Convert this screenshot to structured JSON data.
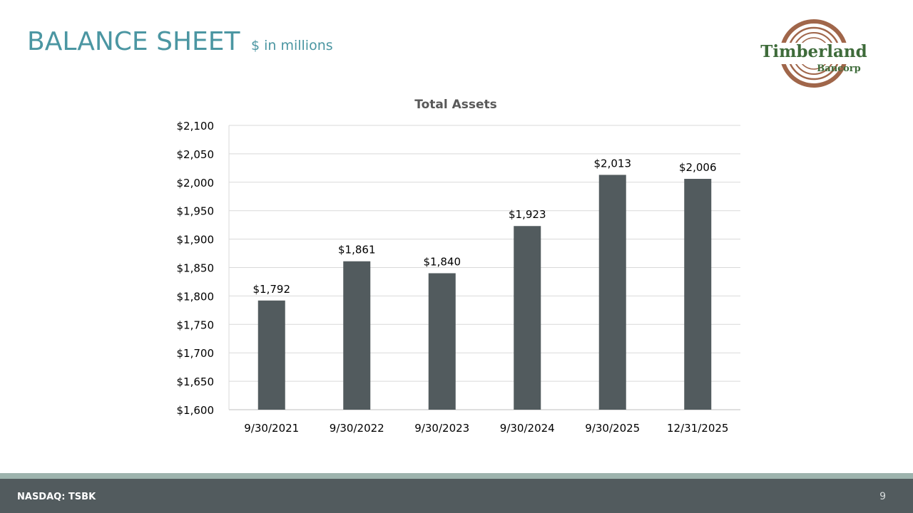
{
  "slide": {
    "title": "BALANCE SHEET",
    "subtitle": "$ in millions",
    "page_number": "9",
    "footer_ticker": "NASDAQ: TSBK"
  },
  "logo": {
    "name": "Timberland",
    "sub": "Bancorp",
    "colors": {
      "ring": "#a0664a",
      "text": "#3e6b3a"
    }
  },
  "colors": {
    "title": "#4b96a2",
    "bar": "#525b5e",
    "grid": "#d9d9d9",
    "footer_bar": "#525b5e",
    "footer_band": "#9db3ad"
  },
  "chart_data": {
    "type": "bar",
    "title": "Total Assets",
    "categories": [
      "9/30/2021",
      "9/30/2022",
      "9/30/2023",
      "9/30/2024",
      "9/30/2025",
      "12/31/2025"
    ],
    "values": [
      1792,
      1861,
      1840,
      1923,
      2013,
      2006
    ],
    "value_labels": [
      "$1,792",
      "$1,861",
      "$1,840",
      "$1,923",
      "$2,013",
      "$2,006"
    ],
    "ylim": [
      1600,
      2100
    ],
    "yticks": [
      1600,
      1650,
      1700,
      1750,
      1800,
      1850,
      1900,
      1950,
      2000,
      2050,
      2100
    ],
    "ytick_labels": [
      "$1,600",
      "$1,650",
      "$1,700",
      "$1,750",
      "$1,800",
      "$1,850",
      "$1,900",
      "$1,950",
      "$2,000",
      "$2,050",
      "$2,100"
    ],
    "grid": true,
    "legend": "none"
  }
}
